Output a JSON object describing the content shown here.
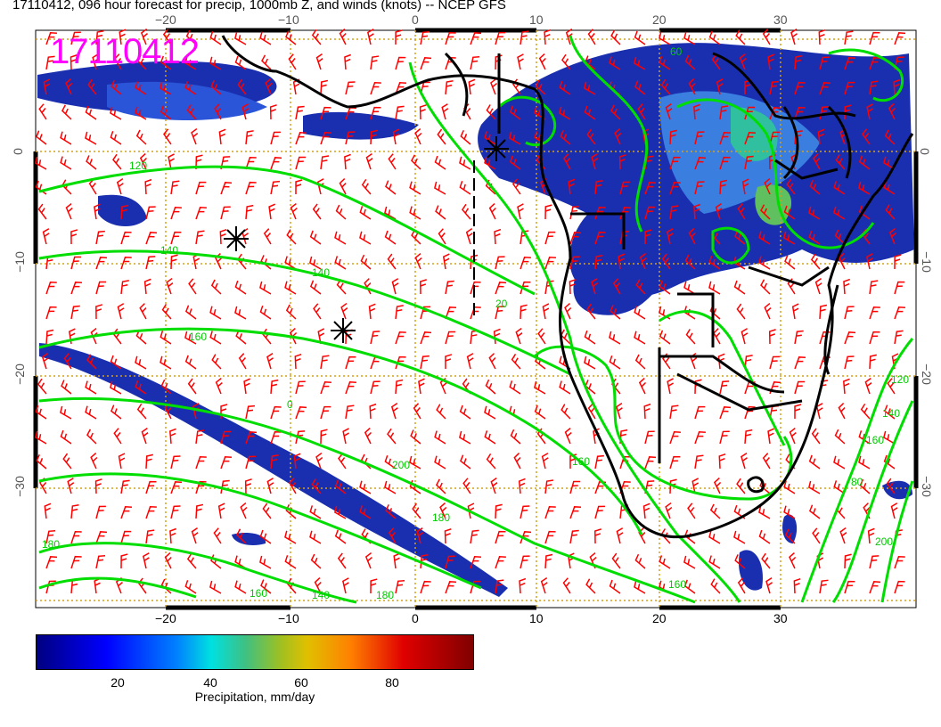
{
  "title": "17110412, 096 hour forecast for precip, 1000mb Z, and winds (knots) -- NCEP GFS",
  "stamp": "17110412",
  "axes": {
    "x_ticks": [
      "−20",
      "−10",
      "0",
      "10",
      "20",
      "30"
    ],
    "y_ticks": [
      "0",
      "−10",
      "−20",
      "−30"
    ]
  },
  "contour_labels": [
    "120",
    "140",
    "140",
    "160",
    "200",
    "180",
    "160",
    "180",
    "200",
    "160",
    "160",
    "140",
    "160",
    "120",
    "180",
    "140",
    "80",
    "60",
    "20",
    "0"
  ],
  "colorbar": {
    "label": "Precipitation, mm/day",
    "ticks": [
      "20",
      "40",
      "60",
      "80"
    ]
  },
  "colors": {
    "stamp": "#ff00ff",
    "contour": "#00dd00",
    "wind": "#ff0000",
    "grid": "#d4a017",
    "precip": "#1a2fb0"
  },
  "markers": [
    "storm-center-1",
    "storm-center-2",
    "storm-center-3"
  ]
}
